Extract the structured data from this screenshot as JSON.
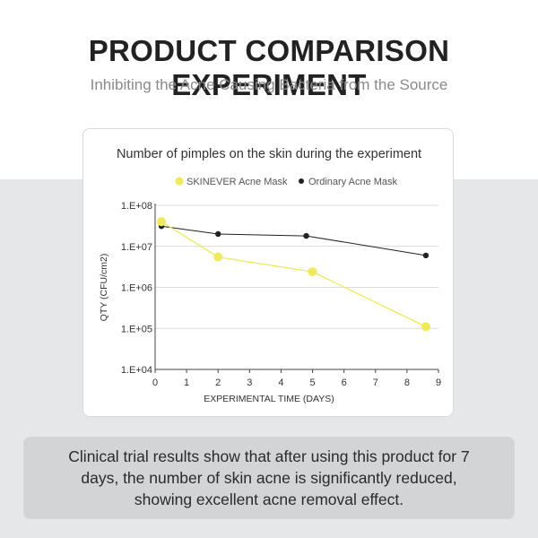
{
  "header": {
    "title": "PRODUCT COMPARISON EXPERIMENT",
    "subtitle": "Inhibiting the Acne Causing Bacteria from the Source"
  },
  "chart_data": {
    "type": "line",
    "title": "Number of pimples on the skin during the experiment",
    "xlabel": "EXPERIMENTAL TIME (DAYS)",
    "ylabel": "QTY  (CFU/cm2)",
    "x_ticks": [
      0,
      1,
      2,
      3,
      4,
      5,
      6,
      7,
      8,
      9
    ],
    "xlim": [
      0,
      9
    ],
    "y_scale": "log",
    "y_ticks": [
      "1.E+04",
      "1.E+05",
      "1.E+06",
      "1.E+07",
      "1.E+08"
    ],
    "ylim": [
      10000,
      100000000
    ],
    "legend_position": "top",
    "grid": "horizontal",
    "series": [
      {
        "name": "SKINEVER Acne Mask",
        "color": "#eeea5a",
        "points": [
          {
            "x": 0.2,
            "y": 40000000
          },
          {
            "x": 2,
            "y": 5500000
          },
          {
            "x": 5,
            "y": 2400000
          },
          {
            "x": 8.6,
            "y": 110000
          }
        ]
      },
      {
        "name": "Ordinary Acne Mask",
        "color": "#222222",
        "points": [
          {
            "x": 0.2,
            "y": 31000000
          },
          {
            "x": 2,
            "y": 20000000
          },
          {
            "x": 4.8,
            "y": 18000000
          },
          {
            "x": 8.6,
            "y": 6000000
          }
        ]
      }
    ]
  },
  "footer": {
    "text": "Clinical trial results show that after using this product for 7 days, the number of skin acne is significantly reduced, showing excellent acne removal effect."
  }
}
